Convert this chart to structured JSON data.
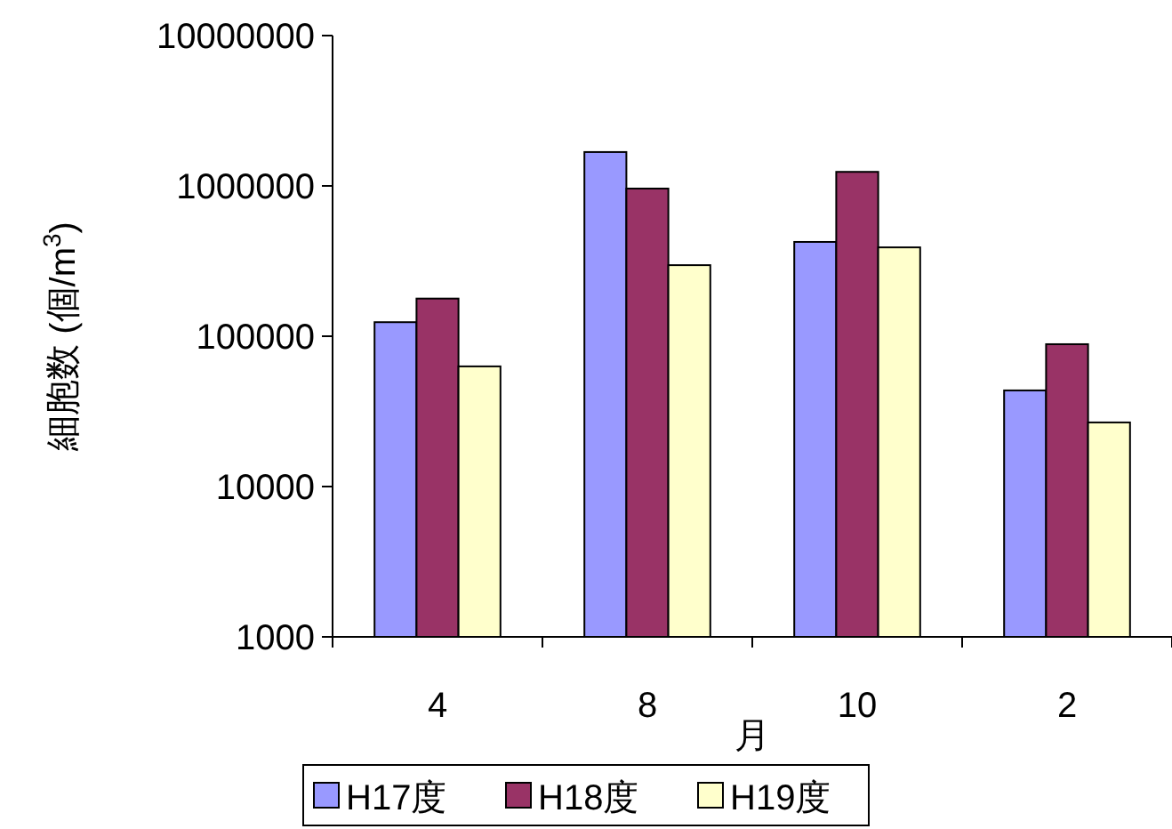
{
  "chart_data": {
    "type": "bar",
    "log": "y",
    "xlabel": "月",
    "ylabel": "細胞数 (個/m$^{3}$)",
    "categories": [
      "4",
      "8",
      "10",
      "2"
    ],
    "series": [
      {
        "name": "H17度",
        "color": "#9999ff",
        "values": [
          124000,
          1680000,
          424000,
          43600
        ]
      },
      {
        "name": "H18度",
        "color": "#993366",
        "values": [
          178000,
          960000,
          1240000,
          88500
        ]
      },
      {
        "name": "H19度",
        "color": "#ffffcc",
        "values": [
          63000,
          297000,
          390000,
          26700
        ]
      }
    ],
    "ylim": [
      1000,
      10000000
    ],
    "yticks": [
      1000,
      10000,
      100000,
      1000000,
      10000000
    ],
    "grid": false,
    "legend": "bottom"
  }
}
